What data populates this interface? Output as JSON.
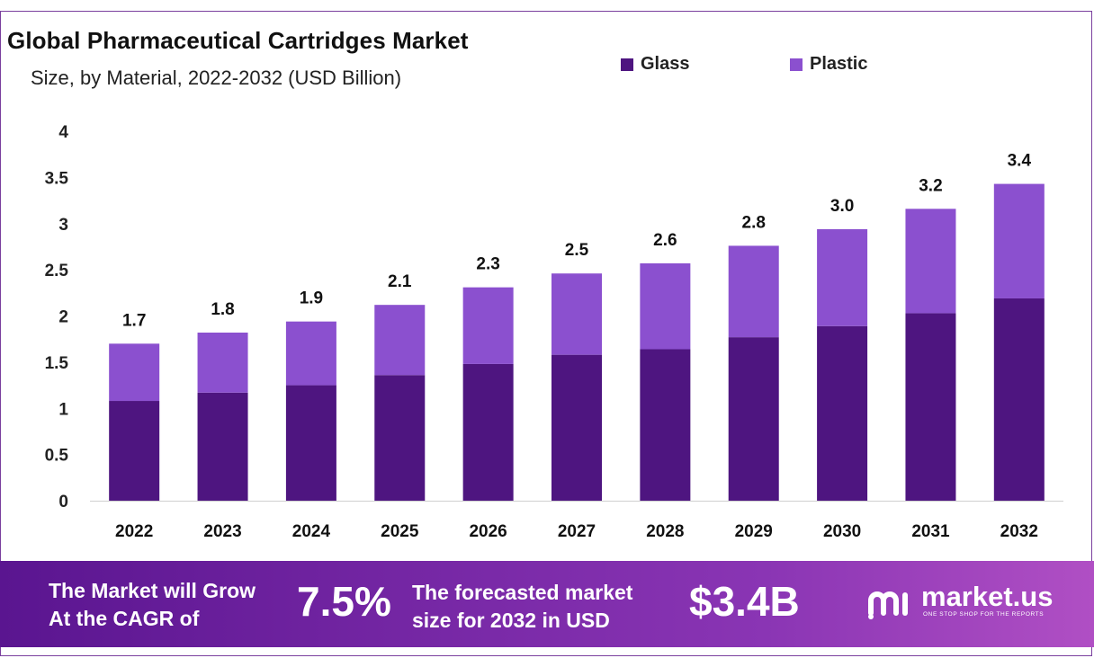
{
  "title": "Global Pharmaceutical Cartridges Market",
  "subtitle": "Size, by Material, 2022-2032 (USD Billion)",
  "colors": {
    "glass": "#4e1580",
    "plastic": "#8b50cf",
    "banner_start": "#5a1590",
    "banner_end": "#b04fc4"
  },
  "chart_data": {
    "type": "bar",
    "stacked": true,
    "categories": [
      "2022",
      "2023",
      "2024",
      "2025",
      "2026",
      "2027",
      "2028",
      "2029",
      "2030",
      "2031",
      "2032"
    ],
    "series": [
      {
        "name": "Glass",
        "values": [
          1.08,
          1.17,
          1.25,
          1.36,
          1.48,
          1.58,
          1.64,
          1.77,
          1.89,
          2.03,
          2.19
        ]
      },
      {
        "name": "Plastic",
        "values": [
          0.62,
          0.65,
          0.69,
          0.76,
          0.83,
          0.88,
          0.93,
          0.99,
          1.05,
          1.13,
          1.24
        ]
      }
    ],
    "totals": [
      "1.7",
      "1.8",
      "1.9",
      "2.1",
      "2.3",
      "2.5",
      "2.6",
      "2.8",
      "3.0",
      "3.2",
      "3.4"
    ],
    "ylim": [
      0,
      4
    ],
    "yticks": [
      "0",
      "0.5",
      "1",
      "1.5",
      "2",
      "2.5",
      "3",
      "3.5",
      "4"
    ],
    "grid": false,
    "legend": "top-right"
  },
  "banner": {
    "cagr_text_line1": "The Market will Grow",
    "cagr_text_line2": "At the CAGR of",
    "cagr_value": "7.5%",
    "forecast_text_line1": "The forecasted market",
    "forecast_text_line2": "size for 2032 in USD",
    "forecast_value": "$3.4B",
    "logo_name": "market.us",
    "logo_tagline": "ONE STOP SHOP FOR THE REPORTS",
    "logo_icon": "market-us-logo-icon"
  }
}
